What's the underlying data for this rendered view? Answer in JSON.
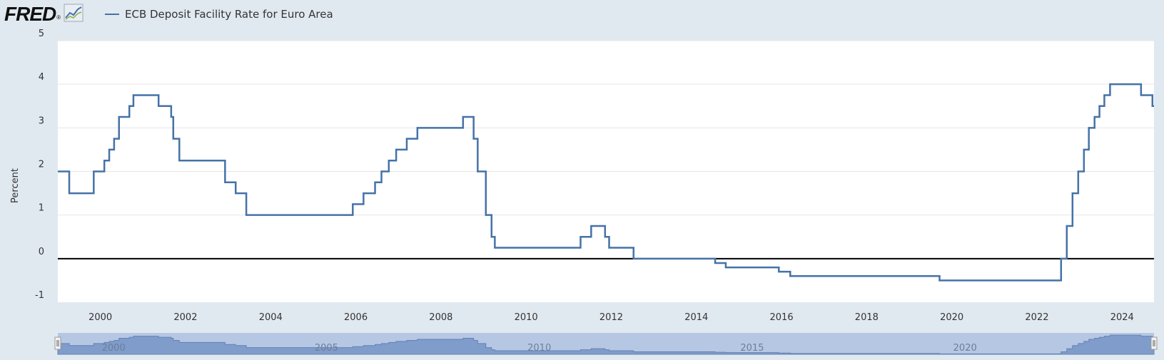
{
  "header": {
    "logo_text": "FRED",
    "logo_reg": "®",
    "logo_icon": "chart-line-icon"
  },
  "legend": {
    "label": "ECB Deposit Facility Rate for Euro Area",
    "color": "#4572a7"
  },
  "colors": {
    "background": "#e1e9f0",
    "plot_bg": "#ffffff",
    "series": "#4572a7",
    "zero_line": "#000000",
    "navigator_fill": "#7f9ccb",
    "navigator_bg": "#b6c7e3"
  },
  "chart_data": {
    "type": "line",
    "step": true,
    "ylabel": "Percent",
    "xlabel": "",
    "ylim": [
      -1,
      5
    ],
    "yticks": [
      -1,
      0,
      1,
      2,
      3,
      4,
      5
    ],
    "xlim": [
      1999.0,
      2024.75
    ],
    "xticks": [
      2000,
      2002,
      2004,
      2006,
      2008,
      2010,
      2012,
      2014,
      2016,
      2018,
      2020,
      2022,
      2024
    ],
    "navigator_ticks": [
      2000,
      2005,
      2010,
      2015,
      2020
    ],
    "grid": true,
    "series": [
      {
        "name": "ECB Deposit Facility Rate for Euro Area",
        "points": [
          [
            "1999-01-01",
            2.0
          ],
          [
            "1999-04-09",
            1.5
          ],
          [
            "1999-11-05",
            2.0
          ],
          [
            "2000-02-04",
            2.25
          ],
          [
            "2000-03-17",
            2.5
          ],
          [
            "2000-04-28",
            2.75
          ],
          [
            "2000-06-09",
            3.25
          ],
          [
            "2000-09-06",
            3.5
          ],
          [
            "2000-10-11",
            3.75
          ],
          [
            "2001-05-15",
            3.5
          ],
          [
            "2001-08-31",
            3.25
          ],
          [
            "2001-09-18",
            2.75
          ],
          [
            "2001-11-09",
            2.25
          ],
          [
            "2002-12-06",
            1.75
          ],
          [
            "2003-03-07",
            1.5
          ],
          [
            "2003-06-06",
            1.0
          ],
          [
            "2005-12-06",
            1.25
          ],
          [
            "2006-03-08",
            1.5
          ],
          [
            "2006-06-15",
            1.75
          ],
          [
            "2006-08-09",
            2.0
          ],
          [
            "2006-10-11",
            2.25
          ],
          [
            "2006-12-13",
            2.5
          ],
          [
            "2007-03-14",
            2.75
          ],
          [
            "2007-06-13",
            3.0
          ],
          [
            "2008-07-09",
            3.25
          ],
          [
            "2008-10-08",
            2.75
          ],
          [
            "2008-11-12",
            2.0
          ],
          [
            "2008-12-10",
            2.0
          ],
          [
            "2009-01-21",
            1.0
          ],
          [
            "2009-03-11",
            0.5
          ],
          [
            "2009-04-08",
            0.25
          ],
          [
            "2011-04-13",
            0.5
          ],
          [
            "2011-07-13",
            0.75
          ],
          [
            "2011-11-09",
            0.5
          ],
          [
            "2011-12-14",
            0.25
          ],
          [
            "2012-07-11",
            0.0
          ],
          [
            "2014-06-11",
            -0.1
          ],
          [
            "2014-09-10",
            -0.2
          ],
          [
            "2015-12-09",
            -0.3
          ],
          [
            "2016-03-16",
            -0.4
          ],
          [
            "2019-09-18",
            -0.5
          ],
          [
            "2022-07-27",
            0.0
          ],
          [
            "2022-09-14",
            0.75
          ],
          [
            "2022-11-02",
            1.5
          ],
          [
            "2022-12-21",
            2.0
          ],
          [
            "2023-02-08",
            2.5
          ],
          [
            "2023-03-22",
            3.0
          ],
          [
            "2023-05-10",
            3.25
          ],
          [
            "2023-06-21",
            3.5
          ],
          [
            "2023-08-02",
            3.75
          ],
          [
            "2023-09-20",
            4.0
          ],
          [
            "2024-06-12",
            3.75
          ],
          [
            "2024-09-18",
            3.5
          ],
          [
            "2024-10-01",
            3.5
          ]
        ]
      }
    ]
  }
}
